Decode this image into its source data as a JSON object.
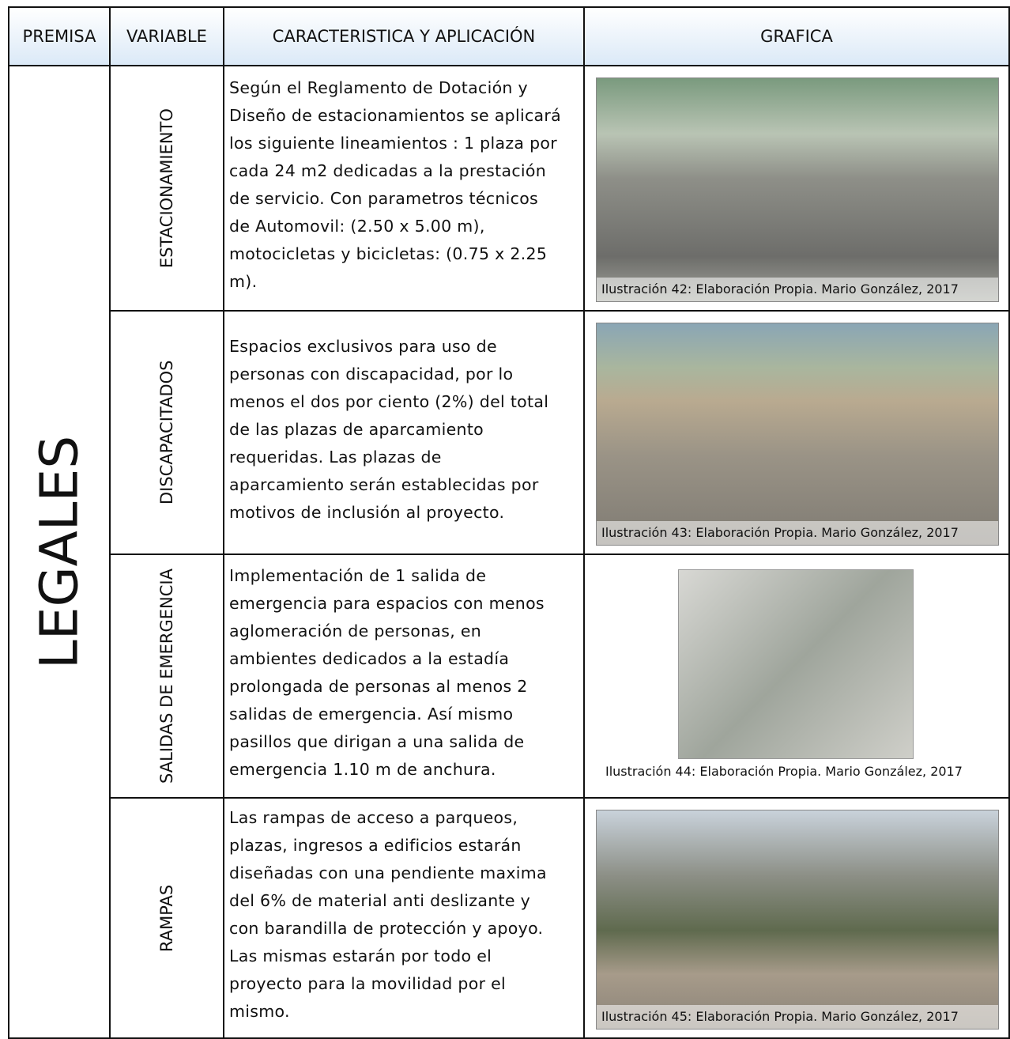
{
  "header": {
    "columns": [
      "PREMISA",
      "VARIABLE",
      "CARACTERISTICA Y APLICACIÓN",
      "GRAFICA"
    ]
  },
  "premisa": "LEGALES",
  "rows": [
    {
      "variable": "ESTACIONAMIENTO",
      "lines": [
        "Según el Reglamento de Dotación y",
        "Diseño de estacionamientos se aplicará",
        "los siguiente lineamientos : 1 plaza por",
        "cada 24 m2 dedicadas a la prestación",
        "de servicio. Con parametros técnicos",
        "de Automovil: (2.50 x 5.00 m),",
        "motocicletas y bicicletas: (0.75 x 2.25",
        "m)."
      ],
      "caption": "Ilustración 42: Elaboración Propia. Mario González, 2017"
    },
    {
      "variable": "DISCAPACITADOS",
      "lines": [
        "Espacios exclusivos para uso de",
        "personas con discapacidad, por lo",
        "menos el dos por ciento (2%) del total",
        "de las plazas de aparcamiento",
        "requeridas. Las plazas de",
        "aparcamiento serán establecidas por",
        "motivos de inclusión al proyecto."
      ],
      "caption": "Ilustración 43: Elaboración Propia. Mario González, 2017"
    },
    {
      "variable": "SALIDAS DE EMERGENCIA",
      "lines": [
        "Implementación de 1 salida de",
        "emergencia para espacios con menos",
        "aglomeración de personas, en",
        "ambientes dedicados a la estadía",
        "prolongada de personas al menos 2",
        "salidas de emergencia. Así mismo",
        "pasillos que dirigan a una salida de",
        "emergencia 1.10 m de anchura."
      ],
      "caption": "Ilustración 44: Elaboración Propia. Mario González, 2017"
    },
    {
      "variable": "RAMPAS",
      "lines": [
        "Las rampas de acceso a parqueos,",
        "plazas, ingresos a edificios estarán",
        "diseñadas con una pendiente maxima",
        "del 6% de material anti deslizante y",
        "con barandilla de protección y apoyo.",
        "Las mismas estarán por todo el",
        "proyecto para la movilidad por el",
        "mismo."
      ],
      "caption": "Ilustración 45: Elaboración Propia. Mario González, 2017"
    }
  ]
}
